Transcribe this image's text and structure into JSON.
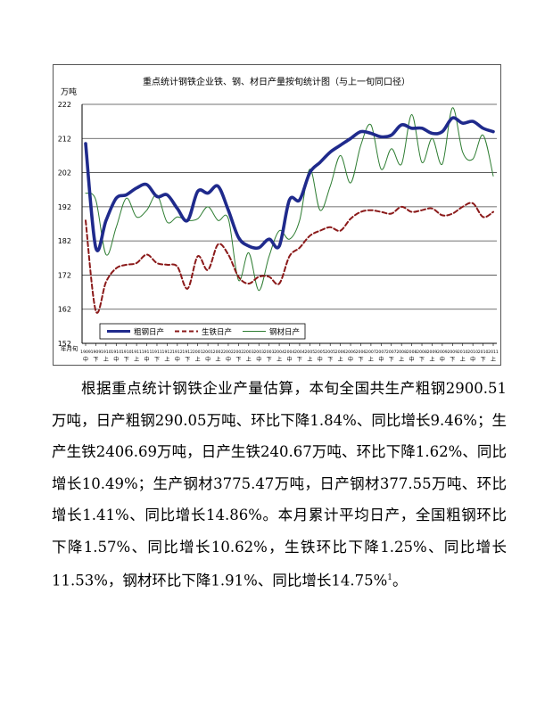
{
  "chart_data": {
    "type": "line",
    "title": "重点统计钢铁企业铁、钢、材日产量按旬统计图（与上一旬同口径）",
    "ylabel": "万吨",
    "xlabel": "年月旬",
    "ylim": [
      152,
      222
    ],
    "yticks": [
      222,
      212,
      202,
      192,
      182,
      172,
      162,
      152
    ],
    "grid": "horizontal",
    "legend_position": "bottom-left",
    "x_tick_labels": [
      "1909",
      "1909",
      "1910",
      "1910",
      "1910",
      "1911",
      "1911",
      "1911",
      "1912",
      "1912",
      "1912",
      "2001",
      "2001",
      "2002",
      "2002",
      "2002",
      "2003",
      "2003",
      "2003",
      "2004",
      "2004",
      "2004",
      "2005",
      "2005",
      "2005",
      "2006",
      "2006",
      "2006",
      "2007",
      "2007",
      "2007",
      "2008",
      "2008",
      "2008",
      "2009",
      "2009",
      "2009",
      "2010",
      "2010",
      "2010",
      "2011"
    ],
    "x_tick_sublabels": [
      "中",
      "下",
      "上",
      "中",
      "下",
      "上",
      "中",
      "下",
      "上",
      "中",
      "下",
      "上",
      "中",
      "上",
      "中",
      "下",
      "上",
      "中",
      "下",
      "上",
      "中",
      "下",
      "上",
      "中",
      "下",
      "上",
      "中",
      "下",
      "上",
      "中",
      "下",
      "上",
      "中",
      "下",
      "上",
      "中",
      "下",
      "上",
      "中",
      "下",
      "上"
    ],
    "series": [
      {
        "name": "粗钢日产",
        "color": "#1f2a8c",
        "style": "solid-thick",
        "values": [
          210.5,
          180,
          188,
          194.5,
          195.5,
          197.5,
          198.5,
          195,
          195.5,
          191.5,
          188,
          196.5,
          196,
          198,
          191,
          183,
          180.5,
          180,
          182.5,
          180.5,
          194,
          194,
          202,
          205,
          208,
          210,
          212,
          214,
          213.5,
          212.5,
          213,
          216,
          215,
          215,
          213.5,
          214,
          218,
          216.5,
          217,
          215,
          214
        ]
      },
      {
        "name": "生铁日产",
        "color": "#8b1a1a",
        "style": "dashed",
        "values": [
          188,
          161.5,
          170,
          174,
          175,
          175.5,
          178,
          175.5,
          175,
          174.5,
          168,
          177.5,
          173.5,
          181,
          178,
          171.5,
          169.5,
          171.5,
          171.5,
          169.5,
          177.5,
          180,
          183.5,
          185,
          186,
          185,
          188.5,
          190.5,
          191,
          190.5,
          190,
          192,
          190.5,
          191,
          191.5,
          189.5,
          190,
          192,
          193,
          189,
          190.5
        ]
      },
      {
        "name": "钢材日产",
        "color": "#2e7d32",
        "style": "solid-thin",
        "values": [
          196,
          194,
          178,
          186,
          194.5,
          189,
          191,
          195.5,
          187.5,
          189,
          188,
          188.5,
          192,
          188,
          188.5,
          170.5,
          178.5,
          167.5,
          177.5,
          185,
          182.5,
          188,
          203,
          191,
          198,
          207,
          199,
          210,
          216,
          203,
          209,
          204.5,
          219,
          205,
          212,
          204.5,
          221,
          208,
          206,
          213,
          201
        ]
      }
    ]
  },
  "document": {
    "paragraph": "根据重点统计钢铁企业产量估算，本旬全国共生产粗钢2900.51万吨，日产粗钢290.05万吨、环比下降1.84%、同比增长9.46%；生产生铁2406.69万吨，日产生铁240.67万吨、环比下降1.62%、同比增长10.49%；生产钢材3775.47万吨，日产钢材377.55万吨、环比增长1.41%、同比增长14.86%。本月累计平均日产，全国粗钢环比下降1.57%、同比增长10.62%，生铁环比下降1.25%、同比增长11.53%，钢材环比下降1.91%、同比增长14.75%",
    "footnote_marker": "1",
    "paragraph_end": "。"
  }
}
